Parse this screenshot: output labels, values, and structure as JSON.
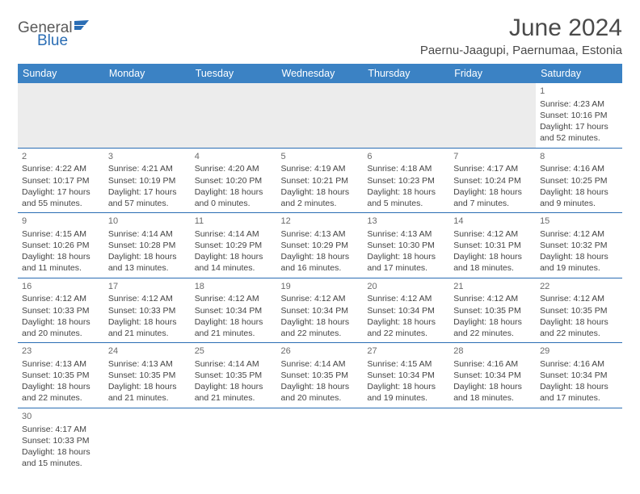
{
  "logo": {
    "main": "General",
    "sub": "Blue"
  },
  "title": "June 2024",
  "location": "Paernu-Jaagupi, Paernumaa, Estonia",
  "colors": {
    "header_bg": "#3b82c4",
    "header_text": "#ffffff",
    "border": "#2a6db4",
    "body_text": "#444444",
    "grey_bg": "#ececec",
    "title_text": "#4a4a4a"
  },
  "dayHeaders": [
    "Sunday",
    "Monday",
    "Tuesday",
    "Wednesday",
    "Thursday",
    "Friday",
    "Saturday"
  ],
  "weeks": [
    [
      null,
      null,
      null,
      null,
      null,
      null,
      {
        "n": "1",
        "sr": "4:23 AM",
        "ss": "10:16 PM",
        "dl": "17 hours and 52 minutes."
      }
    ],
    [
      {
        "n": "2",
        "sr": "4:22 AM",
        "ss": "10:17 PM",
        "dl": "17 hours and 55 minutes."
      },
      {
        "n": "3",
        "sr": "4:21 AM",
        "ss": "10:19 PM",
        "dl": "17 hours and 57 minutes."
      },
      {
        "n": "4",
        "sr": "4:20 AM",
        "ss": "10:20 PM",
        "dl": "18 hours and 0 minutes."
      },
      {
        "n": "5",
        "sr": "4:19 AM",
        "ss": "10:21 PM",
        "dl": "18 hours and 2 minutes."
      },
      {
        "n": "6",
        "sr": "4:18 AM",
        "ss": "10:23 PM",
        "dl": "18 hours and 5 minutes."
      },
      {
        "n": "7",
        "sr": "4:17 AM",
        "ss": "10:24 PM",
        "dl": "18 hours and 7 minutes."
      },
      {
        "n": "8",
        "sr": "4:16 AM",
        "ss": "10:25 PM",
        "dl": "18 hours and 9 minutes."
      }
    ],
    [
      {
        "n": "9",
        "sr": "4:15 AM",
        "ss": "10:26 PM",
        "dl": "18 hours and 11 minutes."
      },
      {
        "n": "10",
        "sr": "4:14 AM",
        "ss": "10:28 PM",
        "dl": "18 hours and 13 minutes."
      },
      {
        "n": "11",
        "sr": "4:14 AM",
        "ss": "10:29 PM",
        "dl": "18 hours and 14 minutes."
      },
      {
        "n": "12",
        "sr": "4:13 AM",
        "ss": "10:29 PM",
        "dl": "18 hours and 16 minutes."
      },
      {
        "n": "13",
        "sr": "4:13 AM",
        "ss": "10:30 PM",
        "dl": "18 hours and 17 minutes."
      },
      {
        "n": "14",
        "sr": "4:12 AM",
        "ss": "10:31 PM",
        "dl": "18 hours and 18 minutes."
      },
      {
        "n": "15",
        "sr": "4:12 AM",
        "ss": "10:32 PM",
        "dl": "18 hours and 19 minutes."
      }
    ],
    [
      {
        "n": "16",
        "sr": "4:12 AM",
        "ss": "10:33 PM",
        "dl": "18 hours and 20 minutes."
      },
      {
        "n": "17",
        "sr": "4:12 AM",
        "ss": "10:33 PM",
        "dl": "18 hours and 21 minutes."
      },
      {
        "n": "18",
        "sr": "4:12 AM",
        "ss": "10:34 PM",
        "dl": "18 hours and 21 minutes."
      },
      {
        "n": "19",
        "sr": "4:12 AM",
        "ss": "10:34 PM",
        "dl": "18 hours and 22 minutes."
      },
      {
        "n": "20",
        "sr": "4:12 AM",
        "ss": "10:34 PM",
        "dl": "18 hours and 22 minutes."
      },
      {
        "n": "21",
        "sr": "4:12 AM",
        "ss": "10:35 PM",
        "dl": "18 hours and 22 minutes."
      },
      {
        "n": "22",
        "sr": "4:12 AM",
        "ss": "10:35 PM",
        "dl": "18 hours and 22 minutes."
      }
    ],
    [
      {
        "n": "23",
        "sr": "4:13 AM",
        "ss": "10:35 PM",
        "dl": "18 hours and 22 minutes."
      },
      {
        "n": "24",
        "sr": "4:13 AM",
        "ss": "10:35 PM",
        "dl": "18 hours and 21 minutes."
      },
      {
        "n": "25",
        "sr": "4:14 AM",
        "ss": "10:35 PM",
        "dl": "18 hours and 21 minutes."
      },
      {
        "n": "26",
        "sr": "4:14 AM",
        "ss": "10:35 PM",
        "dl": "18 hours and 20 minutes."
      },
      {
        "n": "27",
        "sr": "4:15 AM",
        "ss": "10:34 PM",
        "dl": "18 hours and 19 minutes."
      },
      {
        "n": "28",
        "sr": "4:16 AM",
        "ss": "10:34 PM",
        "dl": "18 hours and 18 minutes."
      },
      {
        "n": "29",
        "sr": "4:16 AM",
        "ss": "10:34 PM",
        "dl": "18 hours and 17 minutes."
      }
    ],
    [
      {
        "n": "30",
        "sr": "4:17 AM",
        "ss": "10:33 PM",
        "dl": "18 hours and 15 minutes."
      },
      null,
      null,
      null,
      null,
      null,
      null
    ]
  ],
  "labels": {
    "sunrise": "Sunrise: ",
    "sunset": "Sunset: ",
    "daylight": "Daylight: "
  }
}
